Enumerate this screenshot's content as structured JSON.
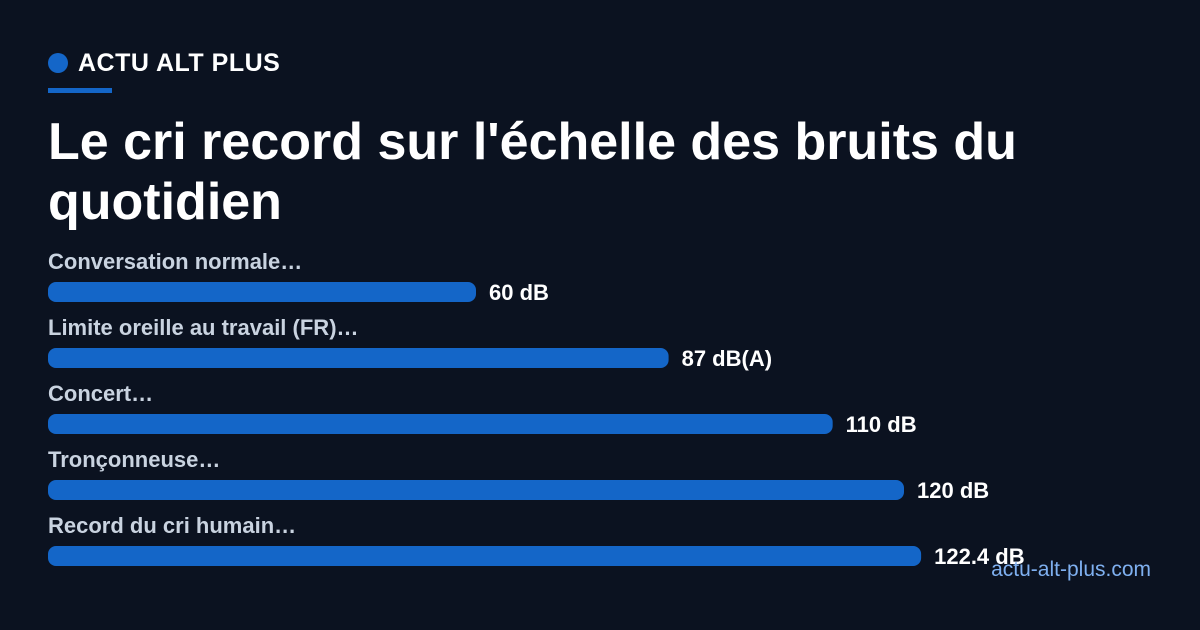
{
  "brand": {
    "name": "ACTU ALT PLUS",
    "accent_color": "#1466c8"
  },
  "title": "Le cri record sur l'échelle des bruits du quotidien",
  "footer": "actu-alt-plus.com",
  "chart_data": {
    "type": "bar",
    "orientation": "horizontal",
    "title": "",
    "xlabel": "",
    "ylabel": "",
    "xlim": [
      0,
      150
    ],
    "grid": false,
    "legend": "none",
    "bar_color": "#1466c8",
    "categories": [
      "Conversation normale…",
      "Limite oreille au travail (FR)…",
      "Concert…",
      "Tronçonneuse…",
      "Record du cri humain…"
    ],
    "values": [
      60,
      87,
      110,
      120,
      122.4
    ],
    "value_labels": [
      "60 dB",
      "87 dB(A)",
      "110 dB",
      "120 dB",
      "122.4 dB"
    ]
  }
}
